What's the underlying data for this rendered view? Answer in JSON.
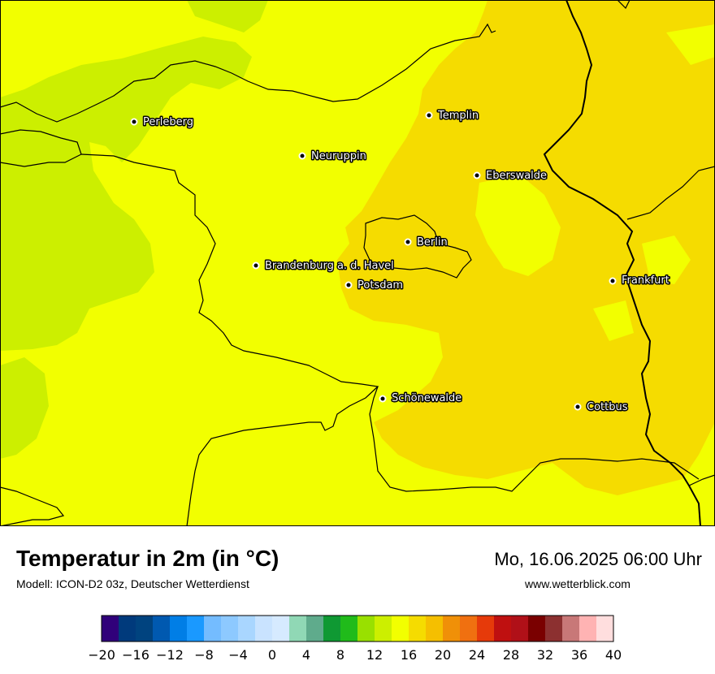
{
  "map": {
    "base_color": "#f2ff00",
    "colors": {
      "t14": "#ccef00",
      "t16": "#f2ff00",
      "t18": "#f5dc00",
      "border": "#000000"
    },
    "cities": [
      {
        "name": "Perleberg",
        "icon": "city-dot"
      },
      {
        "name": "Templin",
        "icon": "city-dot"
      },
      {
        "name": "Neuruppin",
        "icon": "city-dot"
      },
      {
        "name": "Eberswalde",
        "icon": "city-dot"
      },
      {
        "name": "Berlin",
        "icon": "city-dot"
      },
      {
        "name": "Brandenburg a. d. Havel",
        "icon": "city-dot"
      },
      {
        "name": "Potsdam",
        "icon": "city-dot"
      },
      {
        "name": "Frankfurt",
        "icon": "city-dot"
      },
      {
        "name": "Schönewalde",
        "icon": "city-dot"
      },
      {
        "name": "Cottbus",
        "icon": "city-dot"
      }
    ]
  },
  "footer": {
    "title": "Temperatur in 2m (in °C)",
    "model": "Modell: ICON-D2 03z, Deutscher Wetterdienst",
    "datetime": "Mo, 16.06.2025 06:00 Uhr",
    "website": "www.wetterblick.com"
  },
  "legend": {
    "min": -20,
    "max": 40,
    "step": 2,
    "tick_labels": [
      "−20",
      "−16",
      "−12",
      "−8",
      "−4",
      "0",
      "4",
      "8",
      "12",
      "16",
      "20",
      "24",
      "28",
      "32",
      "36",
      "40"
    ],
    "colors": [
      "#30007a",
      "#003a7c",
      "#00437f",
      "#0059b0",
      "#007ee6",
      "#1a99ff",
      "#74bcff",
      "#8dc9ff",
      "#a9d6ff",
      "#c9e3ff",
      "#d6eaff",
      "#90d8b5",
      "#5fab8c",
      "#0f9933",
      "#20bb1a",
      "#99e000",
      "#ccef00",
      "#f2ff00",
      "#f5dc00",
      "#f5bf00",
      "#f09008",
      "#f07010",
      "#e63a0a",
      "#bf1010",
      "#b01018",
      "#7a0000",
      "#8c3030",
      "#c87878",
      "#ffb3b3",
      "#ffdede"
    ]
  }
}
